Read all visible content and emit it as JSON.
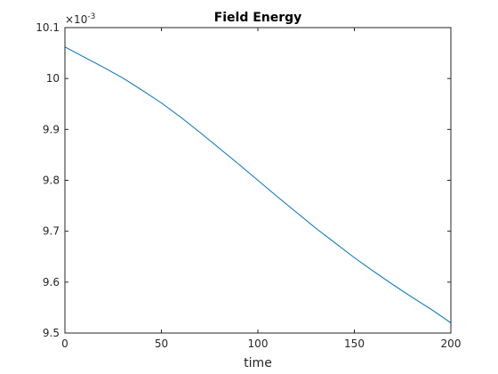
{
  "chart_data": {
    "type": "line",
    "title": "Field Energy",
    "xlabel": "time",
    "ylabel": "",
    "y_exponent_label": "×10",
    "y_exponent_power": "-3",
    "xlim": [
      0,
      200
    ],
    "ylim": [
      9.5,
      10.1
    ],
    "xticks": [
      "0",
      "50",
      "100",
      "150",
      "200"
    ],
    "yticks": [
      "9.5",
      "9.6",
      "9.7",
      "9.8",
      "9.9",
      "10",
      "10.1"
    ],
    "grid": false,
    "line_color": "#0072BD",
    "series": [
      {
        "x": [
          0,
          10,
          20,
          30,
          40,
          50,
          60,
          70,
          80,
          90,
          100,
          110,
          120,
          130,
          140,
          150,
          160,
          170,
          180,
          190,
          200
        ],
        "values": [
          10.062,
          10.042,
          10.022,
          10.001,
          9.977,
          9.952,
          9.924,
          9.894,
          9.863,
          9.832,
          9.8,
          9.768,
          9.737,
          9.706,
          9.677,
          9.648,
          9.621,
          9.595,
          9.57,
          9.546,
          9.52
        ]
      }
    ]
  }
}
